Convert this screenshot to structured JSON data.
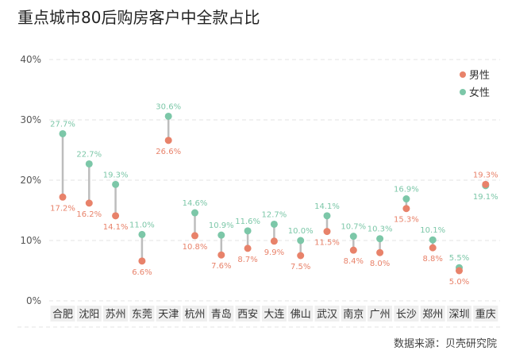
{
  "chart_data": {
    "type": "dumbbell",
    "title": "重点城市80后购房客户中全款占比",
    "categories": [
      "合肥",
      "沈阳",
      "苏州",
      "东莞",
      "天津",
      "杭州",
      "青岛",
      "西安",
      "大连",
      "佛山",
      "武汉",
      "南京",
      "广州",
      "长沙",
      "郑州",
      "深圳",
      "重庆"
    ],
    "series": [
      {
        "name": "男性",
        "color": "#e8826a",
        "values": [
          17.2,
          16.2,
          14.1,
          6.6,
          26.6,
          10.8,
          7.6,
          8.7,
          9.9,
          7.5,
          11.5,
          8.4,
          8.0,
          15.3,
          8.8,
          5.0,
          19.3
        ],
        "labels": [
          "17.2%",
          "16.2%",
          "14.1%",
          "6.6%",
          "26.6%",
          "10.8%",
          "7.6%",
          "8.7%",
          "9.9%",
          "7.5%",
          "11.5%",
          "8.4%",
          "8.0%",
          "15.3%",
          "8.8%",
          "5.0%",
          "19.3%"
        ]
      },
      {
        "name": "女性",
        "color": "#7cc7a8",
        "values": [
          27.7,
          22.7,
          19.3,
          11.0,
          30.6,
          14.6,
          10.9,
          11.6,
          12.7,
          10.0,
          14.1,
          10.7,
          10.3,
          16.9,
          10.1,
          5.5,
          19.1
        ],
        "labels": [
          "27.7%",
          "22.7%",
          "19.3%",
          "11.0%",
          "30.6%",
          "14.6%",
          "10.9%",
          "11.6%",
          "12.7%",
          "10.0%",
          "14.1%",
          "10.7%",
          "10.3%",
          "16.9%",
          "10.1%",
          "5.5%",
          "19.1%"
        ]
      }
    ],
    "ylim": [
      0,
      40
    ],
    "yticks": [
      0,
      10,
      20,
      30,
      40
    ],
    "ytick_labels": [
      "0%",
      "10%",
      "20%",
      "30%",
      "40%"
    ],
    "grid": true,
    "legend": "top-right",
    "source": "数据来源：贝壳研究院"
  }
}
